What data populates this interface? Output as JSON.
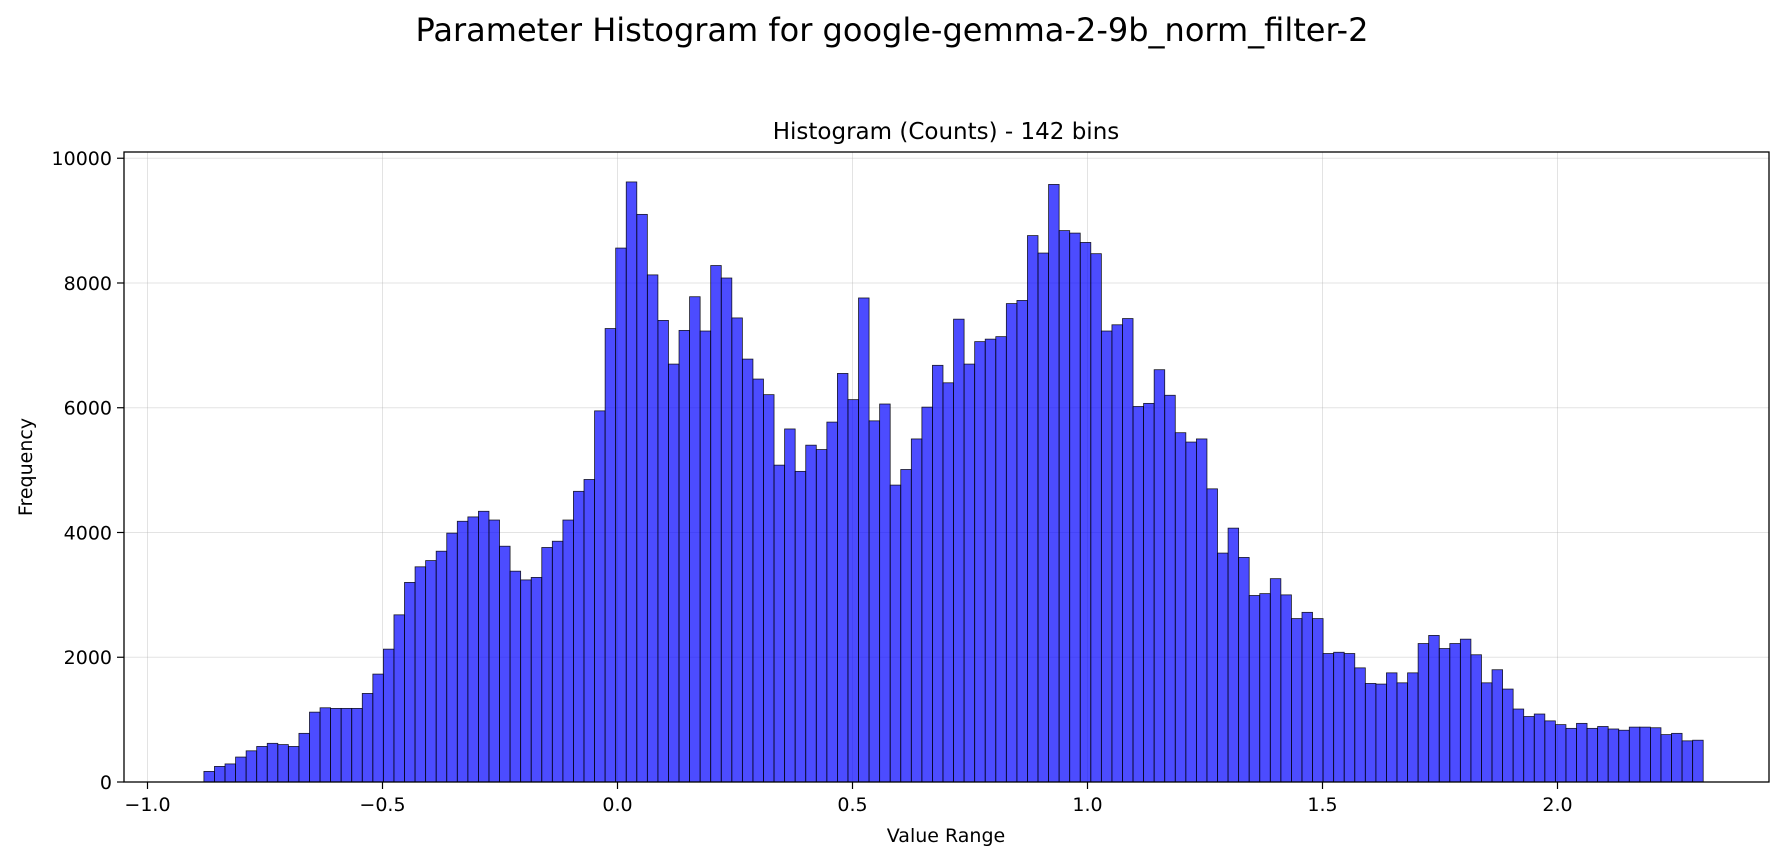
{
  "chart_data": {
    "type": "bar",
    "suptitle": "Parameter Histogram for google-gemma-2-9b_norm_filter-2",
    "title": "Histogram (Counts) - 142 bins",
    "xlabel": "Value Range",
    "ylabel": "Frequency",
    "xlim": [
      -1.05,
      2.45
    ],
    "ylim": [
      0,
      10100
    ],
    "grid": true,
    "bar_color": "#0000ff",
    "bin_start": -0.88,
    "bin_end": 2.31,
    "xticks": [
      {
        "value": -1.0,
        "label": "−1.0"
      },
      {
        "value": -0.5,
        "label": "−0.5"
      },
      {
        "value": 0.0,
        "label": "0.0"
      },
      {
        "value": 0.5,
        "label": "0.5"
      },
      {
        "value": 1.0,
        "label": "1.0"
      },
      {
        "value": 1.5,
        "label": "1.5"
      },
      {
        "value": 2.0,
        "label": "2.0"
      }
    ],
    "yticks": [
      {
        "value": 0,
        "label": "0"
      },
      {
        "value": 2000,
        "label": "2000"
      },
      {
        "value": 4000,
        "label": "4000"
      },
      {
        "value": 6000,
        "label": "6000"
      },
      {
        "value": 8000,
        "label": "8000"
      },
      {
        "value": 10000,
        "label": "10000"
      }
    ],
    "values": [
      170,
      250,
      290,
      400,
      500,
      570,
      620,
      600,
      570,
      780,
      1120,
      1190,
      1180,
      1180,
      1180,
      1420,
      1730,
      2130,
      2680,
      3200,
      3450,
      3550,
      3700,
      3990,
      4180,
      4250,
      4340,
      4200,
      3780,
      3380,
      3240,
      3280,
      3760,
      3860,
      4200,
      4660,
      4850,
      5950,
      7270,
      8560,
      9620,
      9100,
      8130,
      7400,
      6700,
      7240,
      7780,
      7230,
      8280,
      8080,
      7440,
      6780,
      6460,
      6210,
      5080,
      5660,
      4980,
      5400,
      5330,
      5770,
      6550,
      6130,
      7760,
      5790,
      6060,
      4760,
      5010,
      5500,
      6010,
      6680,
      6400,
      7420,
      6700,
      7060,
      7100,
      7140,
      7670,
      7720,
      8760,
      8480,
      9580,
      8840,
      8800,
      8650,
      8470,
      7230,
      7330,
      7430,
      6020,
      6070,
      6610,
      6200,
      5600,
      5450,
      5500,
      4700,
      3670,
      4070,
      3600,
      2990,
      3020,
      3260,
      3000,
      2620,
      2720,
      2620,
      2060,
      2080,
      2060,
      1830,
      1580,
      1570,
      1750,
      1590,
      1750,
      2220,
      2350,
      2140,
      2220,
      2290,
      2040,
      1590,
      1800,
      1490,
      1170,
      1050,
      1090,
      980,
      920,
      860,
      940,
      860,
      890,
      850,
      830,
      880,
      880,
      870,
      760,
      780,
      660,
      670
    ]
  }
}
